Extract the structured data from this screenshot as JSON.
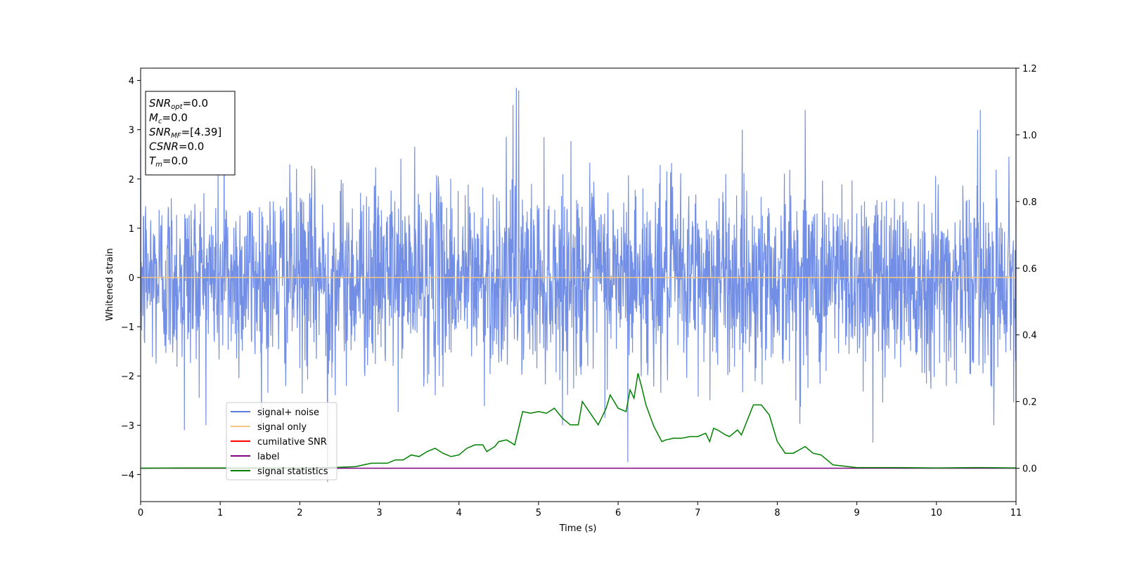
{
  "chart_data": {
    "type": "line",
    "xlabel": "Time (s)",
    "ylabel": "Whitened strain",
    "xlim": [
      0,
      11
    ],
    "ylim": [
      -4.55,
      4.25
    ],
    "y2lim": [
      -0.1,
      1.2
    ],
    "xticks": [
      0,
      1,
      2,
      3,
      4,
      5,
      6,
      7,
      8,
      9,
      10,
      11
    ],
    "yticks": [
      -4,
      -3,
      -2,
      -1,
      0,
      1,
      2,
      3,
      4
    ],
    "y2ticks": [
      "0.0",
      "0.2",
      "0.4",
      "0.6",
      "0.8",
      "1.0",
      "1.2"
    ],
    "grid": false,
    "legend": {
      "placement": "lower-left",
      "entries": [
        {
          "label": "signal+ noise",
          "color": "#5b7be0"
        },
        {
          "label": "signal only",
          "color": "#f5c77e"
        },
        {
          "label": "cumilative SNR",
          "color": "#ff0000"
        },
        {
          "label": "label",
          "color": "#800080"
        },
        {
          "label": "signal statistics",
          "color": "#008000"
        }
      ]
    },
    "annotations": [
      {
        "name": "SNR",
        "sub": "opt",
        "value": "=0.0"
      },
      {
        "name": "M",
        "sub": "c",
        "value": "=0.0"
      },
      {
        "name": "SNR",
        "sub": "MF",
        "value": "=[4.39]"
      },
      {
        "name": "CSNR",
        "sub": "",
        "value": "=0.0"
      },
      {
        "name": "T",
        "sub": "m",
        "value": "=0.0"
      }
    ],
    "series": [
      {
        "name": "signal+ noise",
        "axis": "left",
        "color": "#5b7be0",
        "description": "whitened noise, roughly within ±2.5 with spikes to ±4",
        "spikes": [
          [
            4.72,
            3.85
          ],
          [
            4.75,
            3.8
          ],
          [
            4.68,
            3.5
          ],
          [
            10.55,
            3.4
          ],
          [
            8.35,
            3.4
          ],
          [
            1.05,
            3.2
          ],
          [
            2.35,
            -4.15
          ],
          [
            6.12,
            -3.75
          ],
          [
            0.55,
            -3.1
          ],
          [
            9.2,
            -3.35
          ]
        ]
      },
      {
        "name": "signal only",
        "axis": "left",
        "color": "#f5c77e",
        "x": [
          0,
          11
        ],
        "y": [
          0,
          0
        ]
      },
      {
        "name": "label",
        "axis": "right",
        "color": "#800080",
        "x": [
          0,
          11
        ],
        "y": [
          0,
          0
        ]
      },
      {
        "name": "signal statistics",
        "axis": "right",
        "color": "#008000",
        "x": [
          0,
          0.5,
          1,
          1.5,
          2,
          2.5,
          2.7,
          2.9,
          3.1,
          3.2,
          3.3,
          3.4,
          3.5,
          3.6,
          3.7,
          3.8,
          3.9,
          4.0,
          4.1,
          4.2,
          4.3,
          4.35,
          4.45,
          4.5,
          4.6,
          4.7,
          4.8,
          4.9,
          5.0,
          5.1,
          5.2,
          5.3,
          5.4,
          5.5,
          5.55,
          5.65,
          5.75,
          5.85,
          5.9,
          6.0,
          6.1,
          6.15,
          6.2,
          6.25,
          6.3,
          6.35,
          6.45,
          6.55,
          6.6,
          6.7,
          6.8,
          6.9,
          7.0,
          7.1,
          7.15,
          7.2,
          7.25,
          7.35,
          7.4,
          7.5,
          7.55,
          7.7,
          7.8,
          7.9,
          8.0,
          8.1,
          8.2,
          8.35,
          8.45,
          8.55,
          8.7,
          9.0,
          9.5,
          10.0,
          10.5,
          11.0
        ],
        "y": [
          0.0,
          0.001,
          0.001,
          0.001,
          0.001,
          0.003,
          0.005,
          0.015,
          0.015,
          0.025,
          0.025,
          0.04,
          0.035,
          0.05,
          0.06,
          0.045,
          0.035,
          0.04,
          0.06,
          0.07,
          0.07,
          0.05,
          0.065,
          0.08,
          0.085,
          0.07,
          0.17,
          0.165,
          0.17,
          0.165,
          0.18,
          0.15,
          0.13,
          0.13,
          0.2,
          0.165,
          0.13,
          0.18,
          0.22,
          0.18,
          0.17,
          0.235,
          0.21,
          0.285,
          0.24,
          0.19,
          0.125,
          0.08,
          0.085,
          0.09,
          0.09,
          0.095,
          0.095,
          0.105,
          0.08,
          0.12,
          0.115,
          0.1,
          0.095,
          0.115,
          0.1,
          0.19,
          0.19,
          0.16,
          0.08,
          0.045,
          0.045,
          0.065,
          0.045,
          0.04,
          0.01,
          0.002,
          0.002,
          0.001,
          0.002,
          0.001
        ]
      }
    ]
  }
}
